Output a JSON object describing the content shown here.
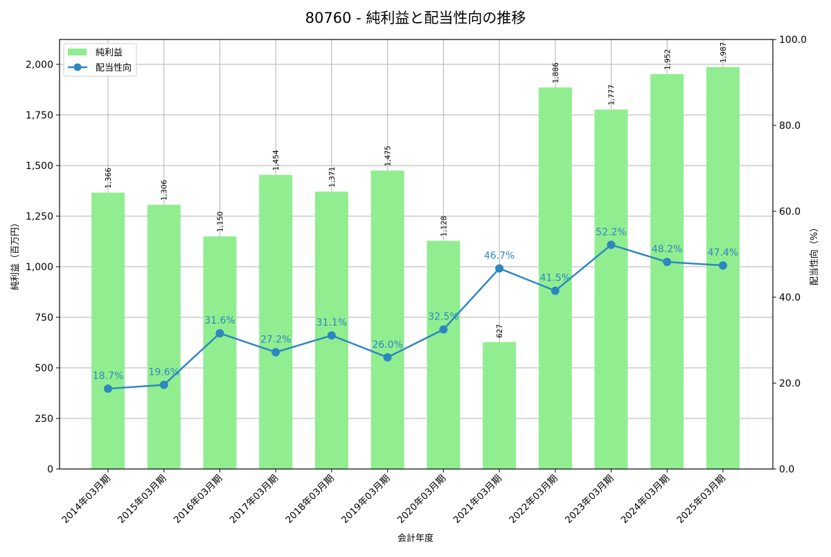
{
  "chart_data": {
    "type": "bar+line",
    "title": "80760 - 純利益と配当性向の推移",
    "xlabel": "会計年度",
    "ylabel_left": "純利益（百万円）",
    "ylabel_right": "配当性向（%）",
    "categories": [
      "2014年03月期",
      "2015年03月期",
      "2016年03月期",
      "2017年03月期",
      "2018年03月期",
      "2019年03月期",
      "2020年03月期",
      "2021年03月期",
      "2022年03月期",
      "2023年03月期",
      "2024年03月期",
      "2025年03月期"
    ],
    "series": [
      {
        "name": "純利益",
        "type": "bar",
        "axis": "left",
        "color": "#90ee90",
        "values": [
          1366,
          1306,
          1150,
          1454,
          1371,
          1475,
          1128,
          627,
          1886,
          1777,
          1952,
          1987
        ],
        "labels": [
          "1,366",
          "1,306",
          "1,150",
          "1,454",
          "1,371",
          "1,475",
          "1,128",
          "627",
          "1,886",
          "1,777",
          "1,952",
          "1,987"
        ]
      },
      {
        "name": "配当性向",
        "type": "line",
        "axis": "right",
        "color": "#2e86c1",
        "values": [
          18.7,
          19.6,
          31.6,
          27.2,
          31.1,
          26.0,
          32.5,
          46.7,
          41.5,
          52.2,
          48.2,
          47.4
        ],
        "labels": [
          "18.7%",
          "19.6%",
          "31.6%",
          "27.2%",
          "31.1%",
          "26.0%",
          "32.5%",
          "46.7%",
          "41.5%",
          "52.2%",
          "48.2%",
          "47.4%"
        ]
      }
    ],
    "ylim_left": [
      0,
      2123
    ],
    "ylim_right": [
      0,
      100
    ],
    "yticks_left": [
      0,
      250,
      500,
      750,
      1000,
      1250,
      1500,
      1750,
      2000
    ],
    "yticks_left_labels": [
      "0",
      "250",
      "500",
      "750",
      "1,000",
      "1,250",
      "1,500",
      "1,750",
      "2,000"
    ],
    "yticks_right": [
      0,
      20,
      40,
      60,
      80,
      100
    ],
    "yticks_right_labels": [
      "0.0",
      "20.0",
      "40.0",
      "60.0",
      "80.0",
      "100.0"
    ],
    "grid": true,
    "legend_position": "upper left",
    "legend": [
      "純利益",
      "配当性向"
    ]
  }
}
